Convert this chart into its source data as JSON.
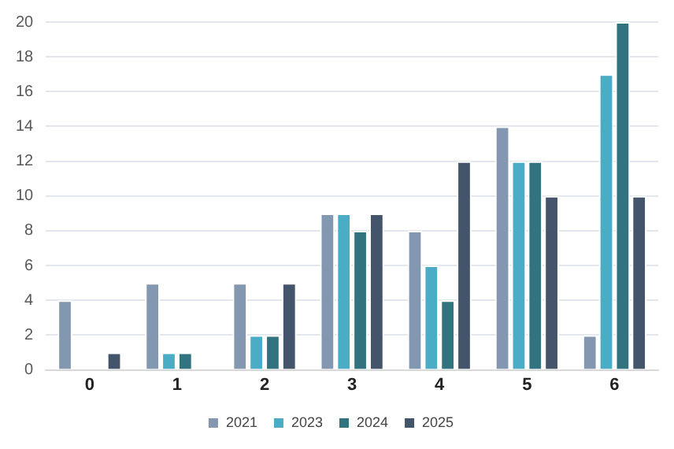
{
  "chart_data": {
    "type": "bar",
    "categories": [
      "0",
      "1",
      "2",
      "3",
      "4",
      "5",
      "6"
    ],
    "series": [
      {
        "name": "2021",
        "color": "#8497b0",
        "values": [
          4,
          5,
          5,
          9,
          8,
          14,
          2
        ]
      },
      {
        "name": "2023",
        "color": "#4bacc6",
        "values": [
          0,
          1,
          2,
          9,
          6,
          12,
          17
        ]
      },
      {
        "name": "2024",
        "color": "#31737f",
        "values": [
          0,
          1,
          2,
          8,
          4,
          12,
          20
        ]
      },
      {
        "name": "2025",
        "color": "#44546a",
        "values": [
          1,
          0,
          5,
          9,
          12,
          10,
          10
        ]
      }
    ],
    "ylim": [
      0,
      20
    ],
    "yticks": [
      0,
      2,
      4,
      6,
      8,
      10,
      12,
      14,
      16,
      18,
      20
    ],
    "grid": "y",
    "legend": "bottom"
  }
}
